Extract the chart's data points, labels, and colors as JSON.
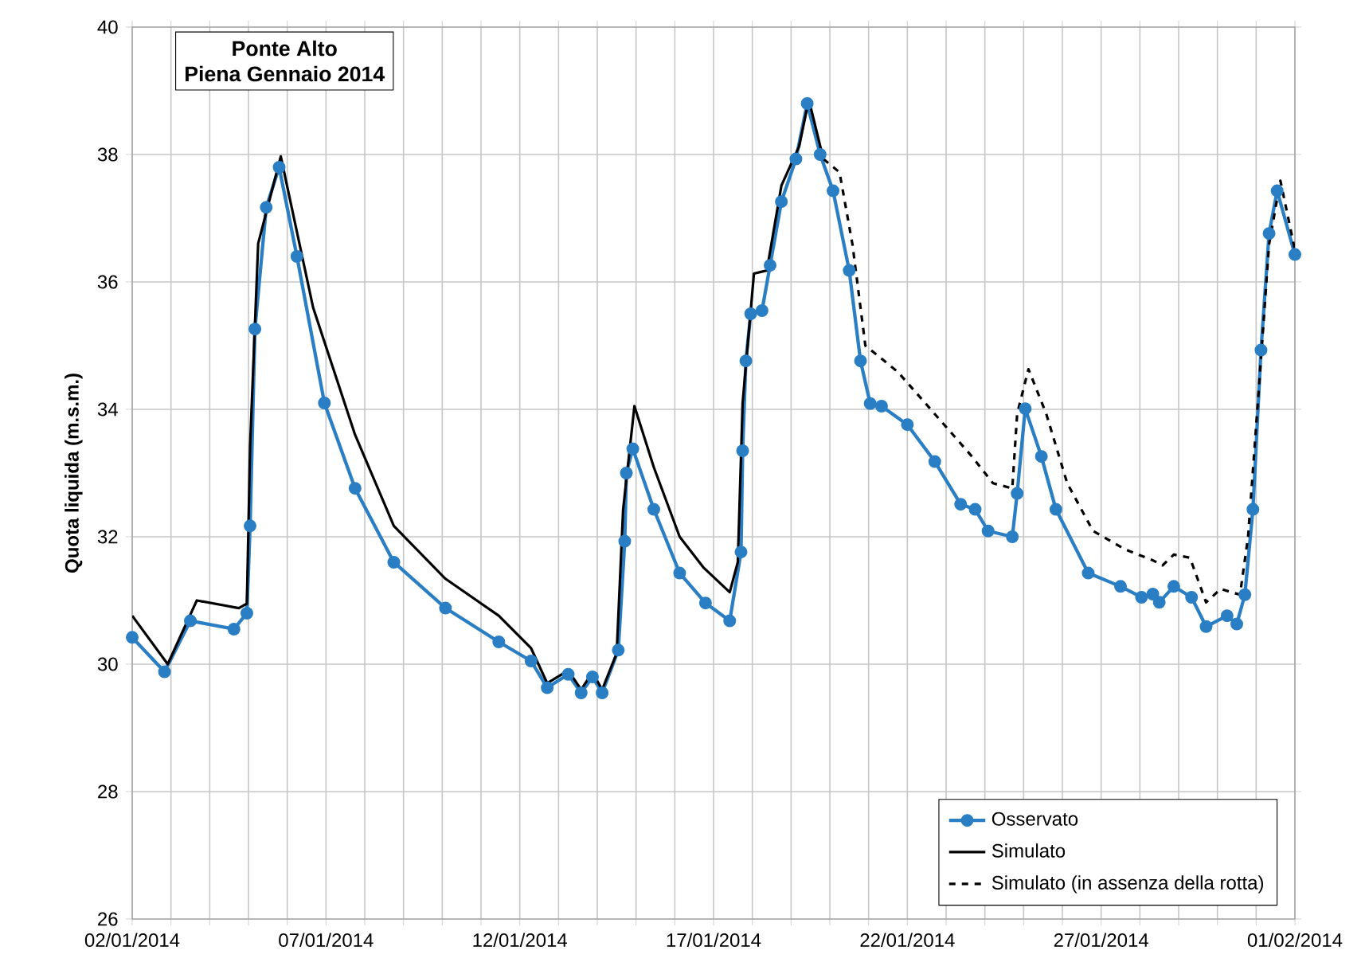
{
  "chart_data": {
    "type": "line",
    "title": "Ponte Alto",
    "subtitle": "Piena Gennaio 2014",
    "ylabel": "Quota liquida (m.s.m.)",
    "xlim": [
      "2014-01-02",
      "2014-02-01"
    ],
    "xticks": [
      {
        "value": "2014-01-02",
        "label": "02/01/2014"
      },
      {
        "value": "2014-01-03",
        "label": null
      },
      {
        "value": "2014-01-04",
        "label": null
      },
      {
        "value": "2014-01-05",
        "label": null
      },
      {
        "value": "2014-01-06",
        "label": null
      },
      {
        "value": "2014-01-07",
        "label": "07/01/2014"
      },
      {
        "value": "2014-01-08",
        "label": null
      },
      {
        "value": "2014-01-09",
        "label": null
      },
      {
        "value": "2014-01-10",
        "label": null
      },
      {
        "value": "2014-01-11",
        "label": null
      },
      {
        "value": "2014-01-12",
        "label": "12/01/2014"
      },
      {
        "value": "2014-01-13",
        "label": null
      },
      {
        "value": "2014-01-14",
        "label": null
      },
      {
        "value": "2014-01-15",
        "label": null
      },
      {
        "value": "2014-01-16",
        "label": null
      },
      {
        "value": "2014-01-17",
        "label": "17/01/2014"
      },
      {
        "value": "2014-01-18",
        "label": null
      },
      {
        "value": "2014-01-19",
        "label": null
      },
      {
        "value": "2014-01-20",
        "label": null
      },
      {
        "value": "2014-01-21",
        "label": null
      },
      {
        "value": "2014-01-22",
        "label": "22/01/2014"
      },
      {
        "value": "2014-01-23",
        "label": null
      },
      {
        "value": "2014-01-24",
        "label": null
      },
      {
        "value": "2014-01-25",
        "label": null
      },
      {
        "value": "2014-01-26",
        "label": null
      },
      {
        "value": "2014-01-27",
        "label": "27/01/2014"
      },
      {
        "value": "2014-01-28",
        "label": null
      },
      {
        "value": "2014-01-29",
        "label": null
      },
      {
        "value": "2014-01-30",
        "label": null
      },
      {
        "value": "2014-01-31",
        "label": null
      },
      {
        "value": "2014-02-01",
        "label": "01/02/2014"
      }
    ],
    "ylim": [
      26,
      40
    ],
    "yticks": [
      26,
      28,
      30,
      32,
      34,
      36,
      38,
      40
    ],
    "grid": true,
    "legend": "bottom right",
    "series": [
      {
        "name": "Osservato",
        "color": "#2a7ec3",
        "marker": "circle",
        "line_style": "solid",
        "x": [
          "2014-01-02T00:00",
          "2014-01-02T20:00",
          "2014-01-03T12:00",
          "2014-01-04T15:00",
          "2014-01-04T23:00",
          "2014-01-05T01:00",
          "2014-01-05T04:00",
          "2014-01-05T11:00",
          "2014-01-05T19:00",
          "2014-01-06T06:00",
          "2014-01-06T23:00",
          "2014-01-07T18:00",
          "2014-01-08T18:00",
          "2014-01-10T02:00",
          "2014-01-11T11:00",
          "2014-01-12T07:00",
          "2014-01-12T17:00",
          "2014-01-13T06:00",
          "2014-01-13T14:00",
          "2014-01-13T21:00",
          "2014-01-14T03:00",
          "2014-01-14T13:00",
          "2014-01-14T17:00",
          "2014-01-14T18:00",
          "2014-01-14T22:00",
          "2014-01-15T11:00",
          "2014-01-16T03:00",
          "2014-01-16T19:00",
          "2014-01-17T10:00",
          "2014-01-17T17:00",
          "2014-01-17T18:00",
          "2014-01-17T20:00",
          "2014-01-17T23:00",
          "2014-01-18T06:00",
          "2014-01-18T11:00",
          "2014-01-18T18:00",
          "2014-01-19T03:00",
          "2014-01-19T10:00",
          "2014-01-19T18:00",
          "2014-01-20T02:00",
          "2014-01-20T12:00",
          "2014-01-20T19:00",
          "2014-01-21T01:00",
          "2014-01-21T08:00",
          "2014-01-22T00:00",
          "2014-01-22T17:00",
          "2014-01-23T09:00",
          "2014-01-23T18:00",
          "2014-01-24T02:00",
          "2014-01-24T17:00",
          "2014-01-24T20:00",
          "2014-01-25T01:00",
          "2014-01-25T11:00",
          "2014-01-25T20:00",
          "2014-01-26T16:00",
          "2014-01-27T12:00",
          "2014-01-28T01:00",
          "2014-01-28T08:00",
          "2014-01-28T12:00",
          "2014-01-28T21:00",
          "2014-01-29T08:00",
          "2014-01-29T17:00",
          "2014-01-30T06:00",
          "2014-01-30T12:00",
          "2014-01-30T17:00",
          "2014-01-30T22:00",
          "2014-01-31T03:00",
          "2014-01-31T08:00",
          "2014-01-31T13:00",
          "2014-02-01T00:00"
        ],
        "values": [
          30.42,
          29.88,
          30.68,
          30.55,
          30.8,
          32.17,
          35.26,
          37.17,
          37.8,
          36.4,
          34.1,
          32.76,
          31.6,
          30.88,
          30.35,
          30.05,
          29.63,
          29.84,
          29.55,
          29.8,
          29.55,
          30.22,
          31.93,
          33.0,
          33.38,
          32.43,
          31.43,
          30.96,
          30.68,
          31.76,
          33.35,
          34.76,
          35.5,
          35.55,
          36.26,
          37.26,
          37.93,
          38.8,
          38.0,
          37.43,
          36.18,
          34.76,
          34.09,
          34.05,
          33.76,
          33.18,
          32.51,
          32.43,
          32.09,
          32.0,
          32.68,
          34.01,
          33.26,
          32.43,
          31.43,
          31.22,
          31.05,
          31.1,
          30.97,
          31.22,
          31.05,
          30.59,
          30.76,
          30.63,
          31.09,
          32.43,
          34.93,
          36.76,
          37.43,
          36.43
        ]
      },
      {
        "name": "Simulato",
        "color": "#000000",
        "marker": "none",
        "line_style": "solid",
        "x": [
          "2014-01-02T00:00",
          "2014-01-02T22:00",
          "2014-01-03T16:00",
          "2014-01-04T18:00",
          "2014-01-04T23:00",
          "2014-01-05T01:00",
          "2014-01-05T06:00",
          "2014-01-05T20:00",
          "2014-01-06T16:00",
          "2014-01-07T18:00",
          "2014-01-08T18:00",
          "2014-01-10T02:00",
          "2014-01-11T11:00",
          "2014-01-12T07:00",
          "2014-01-12T17:00",
          "2014-01-13T06:00",
          "2014-01-13T14:00",
          "2014-01-13T21:00",
          "2014-01-14T03:00",
          "2014-01-14T12:00",
          "2014-01-14T16:00",
          "2014-01-14T23:00",
          "2014-01-15T11:00",
          "2014-01-16T03:00",
          "2014-01-16T18:00",
          "2014-01-17T10:00",
          "2014-01-17T15:00",
          "2014-01-17T18:00",
          "2014-01-18T01:00",
          "2014-01-18T09:00",
          "2014-01-18T18:00",
          "2014-01-19T05:00",
          "2014-01-19T11:00",
          "2014-01-19T20:00"
        ],
        "values": [
          30.76,
          30.0,
          31.0,
          30.88,
          30.95,
          33.42,
          36.6,
          37.97,
          35.6,
          33.6,
          32.17,
          31.34,
          30.76,
          30.25,
          29.7,
          29.9,
          29.6,
          29.87,
          29.6,
          30.17,
          32.43,
          34.05,
          33.09,
          32.0,
          31.51,
          31.13,
          31.6,
          34.1,
          36.13,
          36.18,
          37.51,
          38.13,
          38.86,
          37.93
        ]
      },
      {
        "name": "Simulato (in assenza della rotta)",
        "color": "#000000",
        "marker": "none",
        "line_style": "dashed",
        "x": [
          "2014-01-19T20:00",
          "2014-01-20T06:00",
          "2014-01-20T14:00",
          "2014-01-20T22:00",
          "2014-01-21T18:00",
          "2014-01-22T20:00",
          "2014-01-23T16:00",
          "2014-01-24T05:00",
          "2014-01-24T17:00",
          "2014-01-24T20:00",
          "2014-01-25T03:00",
          "2014-01-25T14:00",
          "2014-01-26T03:00",
          "2014-01-26T19:00",
          "2014-01-27T15:00",
          "2014-01-28T08:00",
          "2014-01-28T14:00",
          "2014-01-28T21:00",
          "2014-01-29T07:00",
          "2014-01-29T17:00",
          "2014-01-30T02:00",
          "2014-01-30T14:00",
          "2014-01-30T19:00",
          "2014-01-31T01:00",
          "2014-01-31T08:00",
          "2014-01-31T15:00",
          "2014-02-01T00:00"
        ],
        "values": [
          37.93,
          37.72,
          36.59,
          35.0,
          34.59,
          33.84,
          33.26,
          32.84,
          32.76,
          33.93,
          34.63,
          33.93,
          32.84,
          32.09,
          31.8,
          31.63,
          31.55,
          31.72,
          31.67,
          30.97,
          31.18,
          31.09,
          32.0,
          34.09,
          36.59,
          37.59,
          36.5
        ]
      }
    ]
  }
}
